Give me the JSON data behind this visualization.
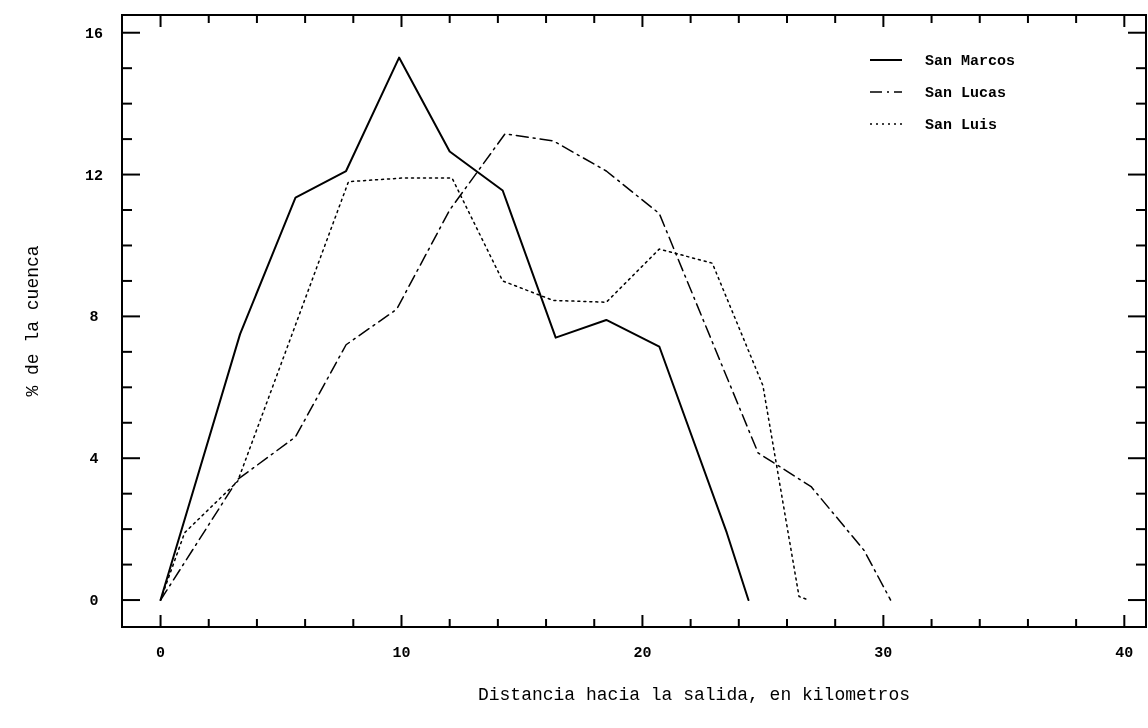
{
  "chart_data": {
    "type": "line",
    "xlabel": "Distancia hacia la salida, en kilometros",
    "ylabel": "% de la cuenca",
    "xlim": [
      -1.6,
      40.9
    ],
    "ylim": [
      -0.76,
      16.5
    ],
    "xticks": [
      0,
      {
        "value": 2,
        "label": null
      },
      {
        "value": 4,
        "label": null
      },
      {
        "value": 6,
        "label": null
      },
      {
        "value": 8,
        "label": null
      },
      10,
      {
        "value": 12,
        "label": null
      },
      {
        "value": 14,
        "label": null
      },
      {
        "value": 16,
        "label": null
      },
      {
        "value": 18,
        "label": null
      },
      20,
      {
        "value": 22,
        "label": null
      },
      {
        "value": 24,
        "label": null
      },
      {
        "value": 26,
        "label": null
      },
      {
        "value": 28,
        "label": null
      },
      30,
      {
        "value": 32,
        "label": null
      },
      {
        "value": 34,
        "label": null
      },
      {
        "value": 36,
        "label": null
      },
      {
        "value": 38,
        "label": null
      },
      40
    ],
    "yticks": [
      0,
      {
        "value": 1,
        "label": null
      },
      {
        "value": 2,
        "label": null
      },
      {
        "value": 3,
        "label": null
      },
      4,
      {
        "value": 5,
        "label": null
      },
      {
        "value": 6,
        "label": null
      },
      {
        "value": 7,
        "label": null
      },
      8,
      {
        "value": 9,
        "label": null
      },
      {
        "value": 10,
        "label": null
      },
      {
        "value": 11,
        "label": null
      },
      12,
      {
        "value": 13,
        "label": null
      },
      {
        "value": 14,
        "label": null
      },
      {
        "value": 15,
        "label": null
      },
      16
    ],
    "grid": false,
    "legend": "top right",
    "marker": "none",
    "series": [
      {
        "name": "San Marcos",
        "color": "#000000",
        "line_style": "solid",
        "x": [
          0,
          3.3,
          5.6,
          7.7,
          9.9,
          12.0,
          14.2,
          16.4,
          18.5,
          20.7,
          23.5,
          24.4
        ],
        "values": [
          0,
          7.5,
          11.35,
          12.1,
          15.3,
          12.65,
          11.55,
          7.4,
          7.9,
          7.15,
          1.9,
          0
        ]
      },
      {
        "name": "San Lucas",
        "color": "#000000",
        "line_style": "dashdot",
        "x": [
          0,
          3.2,
          5.6,
          7.7,
          9.8,
          12.0,
          14.3,
          16.3,
          18.5,
          20.7,
          24.8,
          27.0,
          29.2,
          30.3
        ],
        "values": [
          0,
          3.4,
          4.6,
          7.2,
          8.2,
          11.0,
          13.15,
          12.95,
          12.1,
          10.9,
          4.15,
          3.2,
          1.4,
          0
        ]
      },
      {
        "name": "San Luis",
        "color": "#000000",
        "line_style": "dotted",
        "x": [
          0,
          1.0,
          3.2,
          7.8,
          10.0,
          12.1,
          14.2,
          16.3,
          18.5,
          20.7,
          22.9,
          25.0,
          26.5,
          26.9
        ],
        "values": [
          0,
          1.9,
          3.35,
          11.8,
          11.9,
          11.9,
          9.0,
          8.45,
          8.4,
          9.9,
          9.5,
          6.05,
          0.1,
          0
        ]
      }
    ]
  }
}
